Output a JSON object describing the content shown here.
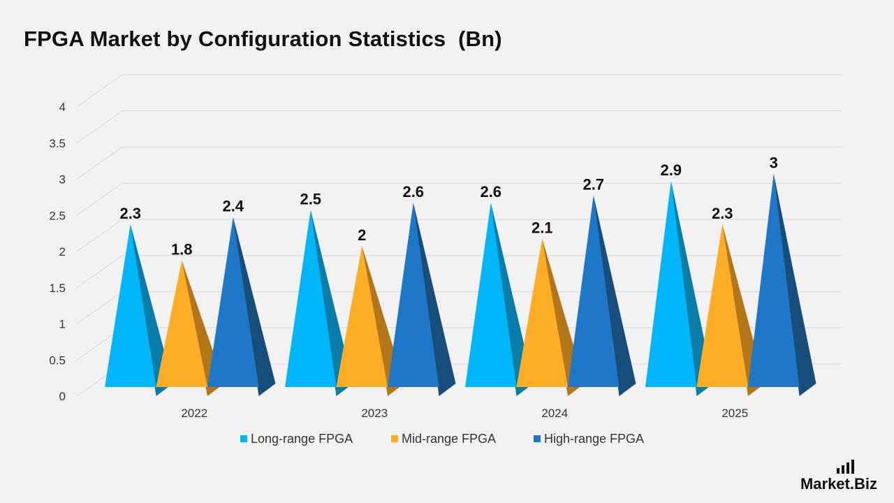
{
  "chart_data": {
    "type": "bar",
    "title": "FPGA Market by Configuration Statistics  (Bn)",
    "categories": [
      "2022",
      "2023",
      "2024",
      "2025"
    ],
    "series": [
      {
        "name": "Long-range FPGA",
        "values": [
          2.3,
          2.5,
          2.6,
          2.9
        ],
        "color": "#00b6f8",
        "shade": "#0a7ca8"
      },
      {
        "name": "Mid-range FPGA",
        "values": [
          1.8,
          2,
          2.1,
          2.3
        ],
        "color": "#fdad26",
        "shade": "#b3771a"
      },
      {
        "name": "High-range FPGA",
        "values": [
          2.4,
          2.6,
          2.7,
          3
        ],
        "color": "#1f77c8",
        "shade": "#174e7c"
      }
    ],
    "data_labels": [
      [
        "2.3",
        "2.5",
        "2.6",
        "2.9"
      ],
      [
        "1.8",
        "2",
        "2.1",
        "2.3"
      ],
      [
        "2.4",
        "2.6",
        "2.7",
        "3"
      ]
    ],
    "ylim": [
      0,
      4
    ],
    "yticks": [
      "0",
      "0.5",
      "1",
      "1.5",
      "2",
      "2.5",
      "3",
      "3.5",
      "4"
    ],
    "grid": true,
    "legend_position": "bottom"
  },
  "brand": {
    "name_left": "Market",
    "name_right": "Biz",
    "dot": "."
  }
}
